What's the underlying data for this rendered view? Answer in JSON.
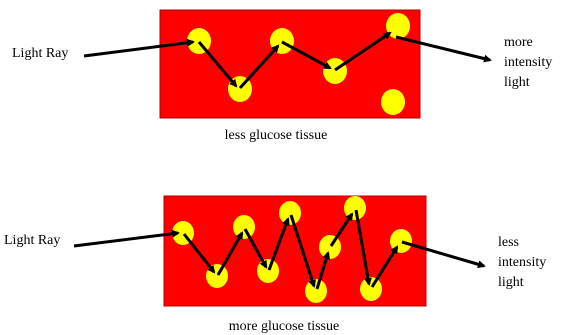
{
  "colors": {
    "tissue": "#ff0000",
    "glucose": "#ffff00",
    "ray": "#000000"
  },
  "top_panel": {
    "input_label": "Light Ray",
    "output_label_lines": [
      "more",
      "intensity",
      "light"
    ],
    "caption": "less glucose tissue"
  },
  "bottom_panel": {
    "input_label": "Light Ray",
    "output_label_lines": [
      "less",
      "intensity",
      "light"
    ],
    "caption": "more glucose tissue"
  }
}
